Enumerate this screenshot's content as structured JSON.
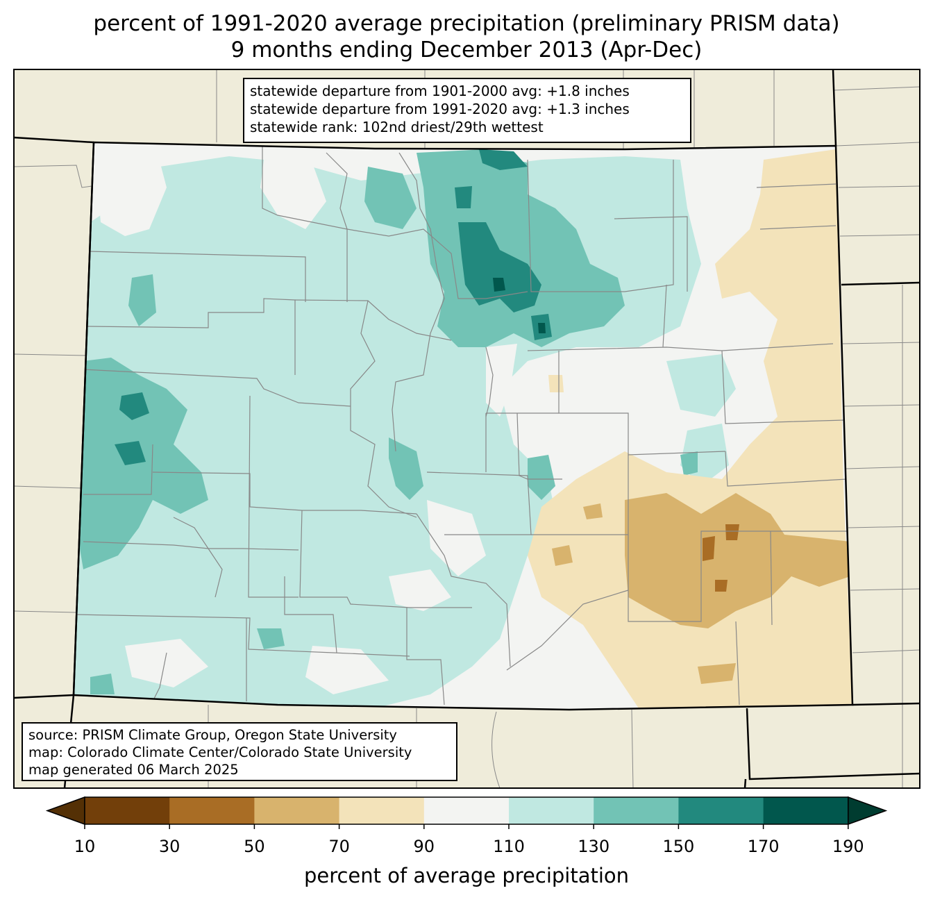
{
  "title": {
    "line1": "percent of 1991-2020 average precipitation (preliminary PRISM data)",
    "line2": "9 months ending December 2013 (Apr-Dec)"
  },
  "stats": {
    "departure_1901_2000": "statewide departure from 1901-2000 avg: +1.8 inches",
    "departure_1991_2020": "statewide departure from 1991-2020 avg: +1.3 inches",
    "rank": "statewide rank: 102nd driest/29th wettest"
  },
  "credits": {
    "source": "source: PRISM Climate Group, Oregon State University",
    "map": "map: Colorado Climate Center/Colorado State University",
    "generated": "map generated 06 March 2025"
  },
  "colorbar": {
    "label": "percent of average precipitation",
    "ticks": [
      "10",
      "30",
      "50",
      "70",
      "90",
      "110",
      "130",
      "150",
      "170",
      "190"
    ],
    "colors": [
      "#543005",
      "#723f0a",
      "#a96d25",
      "#d8b36d",
      "#f3e3ba",
      "#f3f4f2",
      "#c0e8e1",
      "#72c3b5",
      "#22897e",
      "#01574d",
      "#003c30"
    ]
  },
  "map_colors": {
    "background": "#efecda",
    "near_normal": "#f3f4f2",
    "wet_1": "#c0e8e1",
    "wet_2": "#72c3b5",
    "wet_3": "#22897e",
    "wet_4": "#01574d",
    "dry_1": "#f3e3ba",
    "dry_2": "#d8b36d",
    "dry_3": "#a96d25"
  }
}
